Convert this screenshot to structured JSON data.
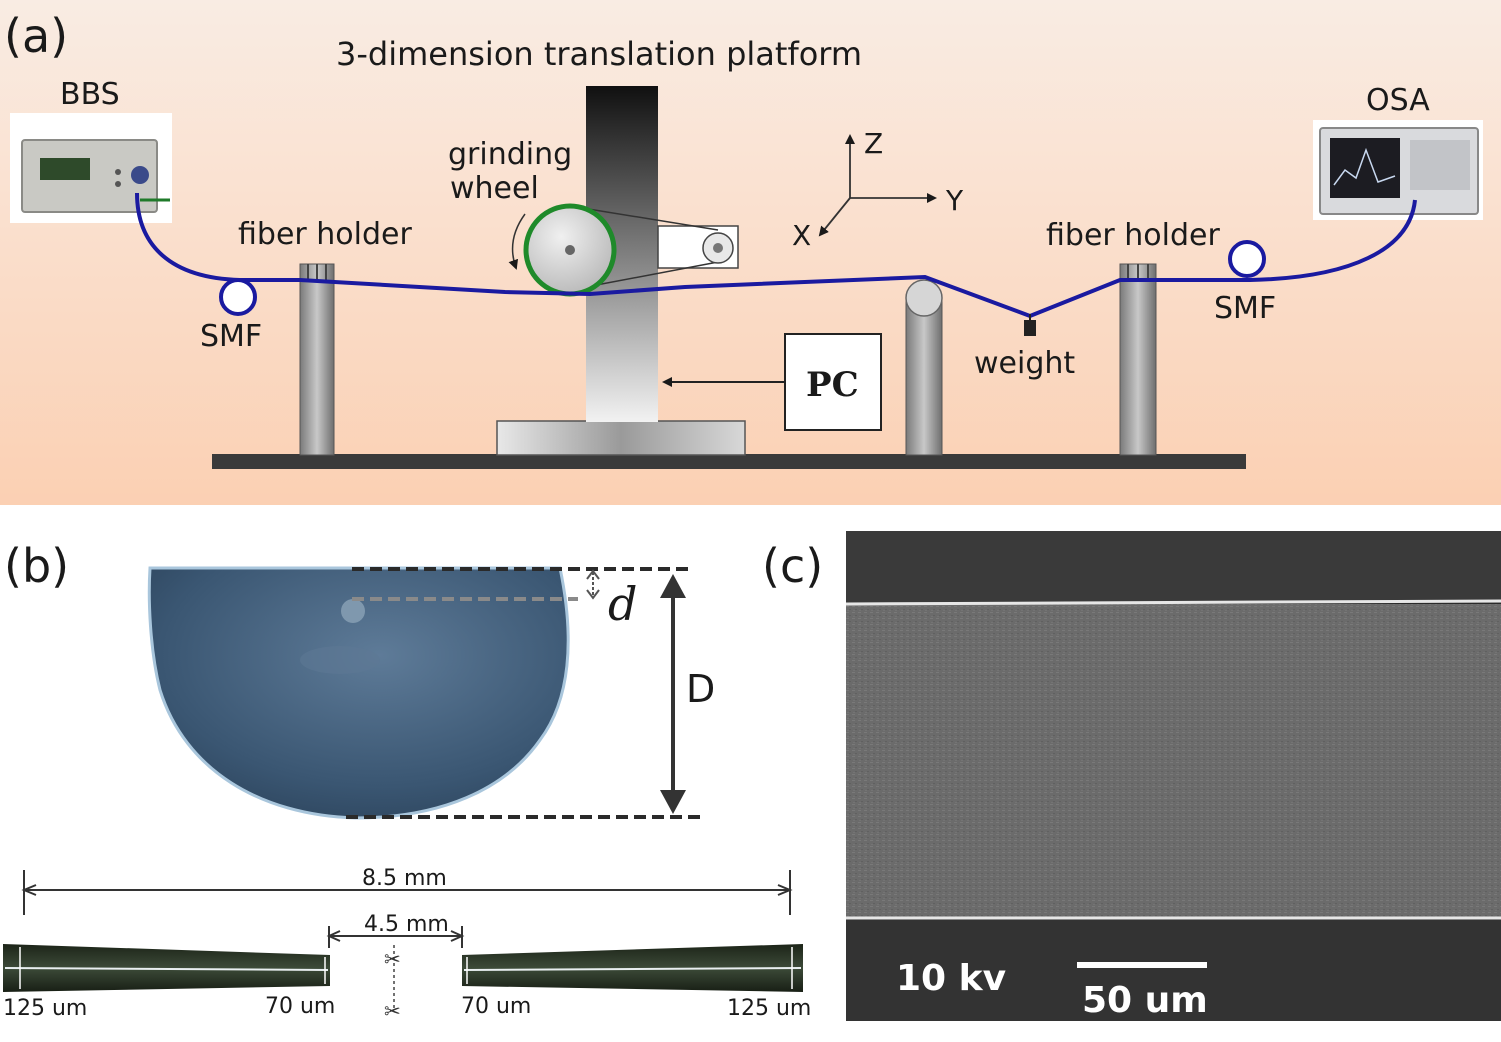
{
  "panel_a": {
    "label": "(a)",
    "platform_label": "3-dimension translation platform",
    "bbs_label": "BBS",
    "osa_label": "OSA",
    "grinding_wheel_line1": "grinding",
    "grinding_wheel_line2": "wheel",
    "fiber_holder_left": "fiber holder",
    "fiber_holder_right": "fiber holder",
    "smf_left": "SMF",
    "smf_right": "SMF",
    "weight_label": "weight",
    "pc_label": "PC",
    "axis_z": "Z",
    "axis_y": "Y",
    "axis_x": "X"
  },
  "panel_b": {
    "label": "(b)",
    "d_label": "d",
    "D_label": "D",
    "total_length": "8.5 mm",
    "gap_length": "4.5 mm",
    "left_end_diameter": "125 um",
    "left_waist_diameter": "70 um",
    "right_waist_diameter": "70 um",
    "right_end_diameter": "125 um"
  },
  "panel_c": {
    "label": "(c)",
    "voltage": "10 kv",
    "scale_bar": "50 um"
  },
  "colors": {
    "panel_a_bg_top": "#f8e3d5",
    "panel_a_bg_bottom": "#fbd3b8",
    "fiber": "#1a1aa0",
    "wheel_rim": "#1f8a2a",
    "fiber_cross_section": "#3a5a78",
    "sem_gray": "#6d6d6d"
  }
}
